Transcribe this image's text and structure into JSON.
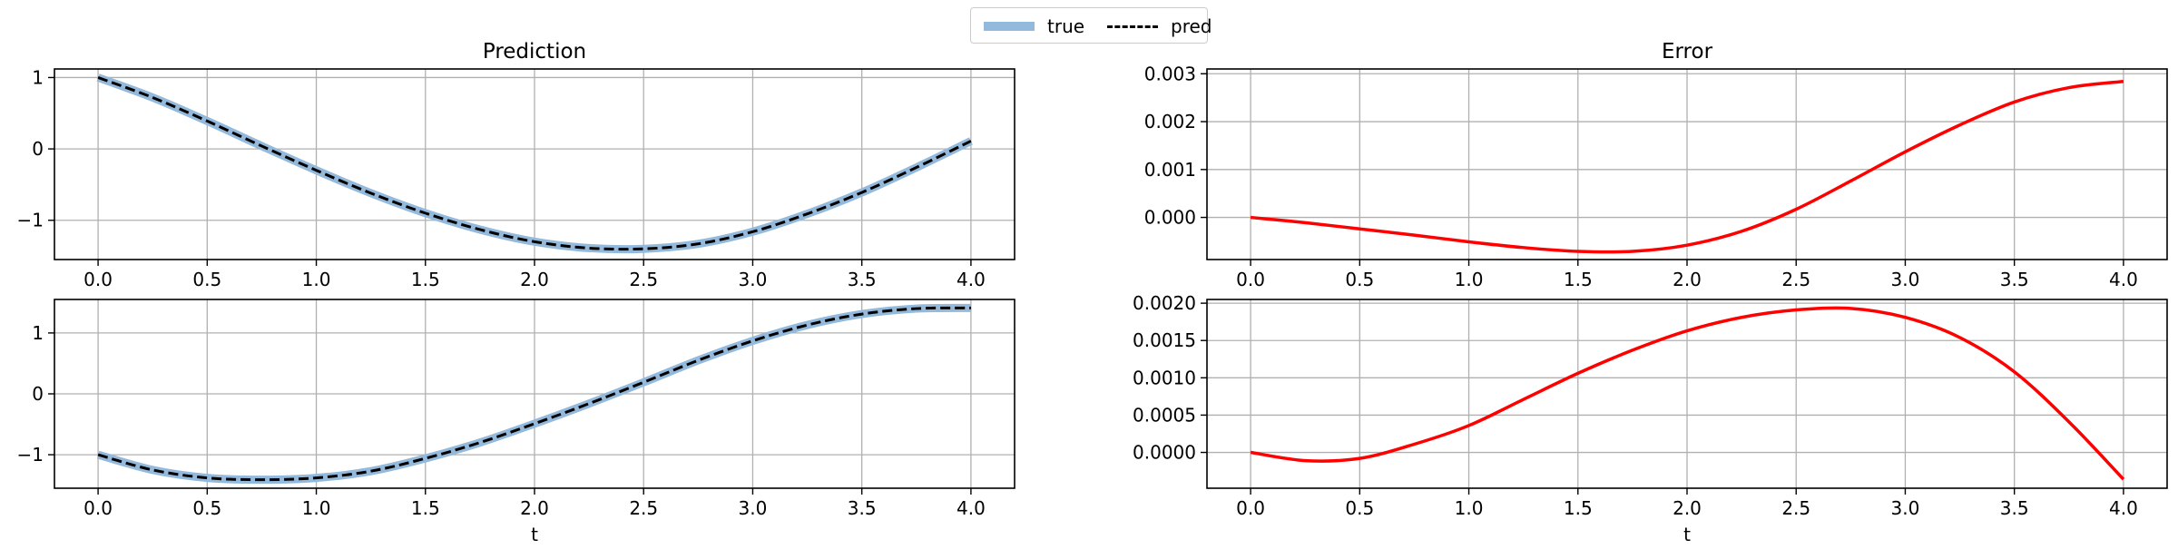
{
  "legend": {
    "true_label": "true",
    "pred_label": "pred"
  },
  "colors": {
    "true": "#93b9dc",
    "pred": "#000000",
    "error": "#ff0000",
    "grid": "#b0b0b0"
  },
  "chart_data": [
    {
      "type": "line",
      "title": "Prediction",
      "xlabel": "",
      "ylabel": "",
      "xlim": [
        -0.2,
        4.2
      ],
      "ylim": [
        -1.55,
        1.12
      ],
      "xticks": [
        0.0,
        0.5,
        1.0,
        1.5,
        2.0,
        2.5,
        3.0,
        3.5,
        4.0
      ],
      "xtick_labels": [
        "0.0",
        "0.5",
        "1.0",
        "1.5",
        "2.0",
        "2.5",
        "3.0",
        "3.5",
        "4.0"
      ],
      "yticks": [
        1,
        0,
        -1
      ],
      "ytick_labels": [
        "1",
        "0",
        "−1"
      ],
      "grid": true,
      "x": [
        0.0,
        0.25,
        0.5,
        0.75,
        1.0,
        1.25,
        1.5,
        1.75,
        2.0,
        2.25,
        2.5,
        2.75,
        3.0,
        3.25,
        3.5,
        3.75,
        4.0
      ],
      "series": [
        {
          "name": "true",
          "values": [
            1.0,
            0.72,
            0.39,
            0.04,
            -0.3,
            -0.62,
            -0.9,
            -1.13,
            -1.3,
            -1.39,
            -1.4,
            -1.33,
            -1.16,
            -0.91,
            -0.61,
            -0.26,
            0.11
          ]
        },
        {
          "name": "pred",
          "values": [
            1.0,
            0.72,
            0.39,
            0.04,
            -0.3,
            -0.62,
            -0.9,
            -1.13,
            -1.3,
            -1.39,
            -1.4,
            -1.33,
            -1.16,
            -0.91,
            -0.61,
            -0.26,
            0.11
          ]
        }
      ]
    },
    {
      "type": "line",
      "title": "Error",
      "xlabel": "",
      "ylabel": "",
      "xlim": [
        -0.2,
        4.2
      ],
      "ylim": [
        -0.00088,
        0.0031
      ],
      "xticks": [
        0.0,
        0.5,
        1.0,
        1.5,
        2.0,
        2.5,
        3.0,
        3.5,
        4.0
      ],
      "xtick_labels": [
        "0.0",
        "0.5",
        "1.0",
        "1.5",
        "2.0",
        "2.5",
        "3.0",
        "3.5",
        "4.0"
      ],
      "yticks": [
        0.003,
        0.002,
        0.001,
        0.0
      ],
      "ytick_labels": [
        "0.003",
        "0.002",
        "0.001",
        "0.000"
      ],
      "grid": true,
      "x": [
        0.0,
        0.25,
        0.5,
        0.75,
        1.0,
        1.25,
        1.5,
        1.75,
        2.0,
        2.25,
        2.5,
        2.75,
        3.0,
        3.25,
        3.5,
        3.75,
        4.0
      ],
      "series": [
        {
          "name": "",
          "values": [
            0.0,
            -0.00011,
            -0.00024,
            -0.00037,
            -0.00051,
            -0.00063,
            -0.00071,
            -0.00071,
            -0.00058,
            -0.00029,
            0.00017,
            0.00076,
            0.00137,
            0.00193,
            0.00241,
            0.00271,
            0.00284
          ]
        }
      ]
    },
    {
      "type": "line",
      "title": "",
      "xlabel": "t",
      "ylabel": "",
      "xlim": [
        -0.2,
        4.2
      ],
      "ylim": [
        -1.55,
        1.55
      ],
      "xticks": [
        0.0,
        0.5,
        1.0,
        1.5,
        2.0,
        2.5,
        3.0,
        3.5,
        4.0
      ],
      "xtick_labels": [
        "0.0",
        "0.5",
        "1.0",
        "1.5",
        "2.0",
        "2.5",
        "3.0",
        "3.5",
        "4.0"
      ],
      "yticks": [
        1,
        0,
        -1
      ],
      "ytick_labels": [
        "1",
        "0",
        "−1"
      ],
      "grid": true,
      "x": [
        0.0,
        0.25,
        0.5,
        0.75,
        1.0,
        1.25,
        1.5,
        1.75,
        2.0,
        2.25,
        2.5,
        2.75,
        3.0,
        3.25,
        3.5,
        3.75,
        4.0
      ],
      "series": [
        {
          "name": "true",
          "values": [
            -1.0,
            -1.25,
            -1.38,
            -1.41,
            -1.38,
            -1.27,
            -1.06,
            -0.8,
            -0.49,
            -0.16,
            0.19,
            0.55,
            0.87,
            1.13,
            1.31,
            1.4,
            1.41
          ]
        },
        {
          "name": "pred",
          "values": [
            -1.0,
            -1.25,
            -1.38,
            -1.41,
            -1.38,
            -1.27,
            -1.06,
            -0.8,
            -0.49,
            -0.16,
            0.19,
            0.55,
            0.87,
            1.13,
            1.31,
            1.4,
            1.41
          ]
        }
      ]
    },
    {
      "type": "line",
      "title": "",
      "xlabel": "t",
      "ylabel": "",
      "xlim": [
        -0.2,
        4.2
      ],
      "ylim": [
        -0.00048,
        0.00205
      ],
      "xticks": [
        0.0,
        0.5,
        1.0,
        1.5,
        2.0,
        2.5,
        3.0,
        3.5,
        4.0
      ],
      "xtick_labels": [
        "0.0",
        "0.5",
        "1.0",
        "1.5",
        "2.0",
        "2.5",
        "3.0",
        "3.5",
        "4.0"
      ],
      "yticks": [
        0.002,
        0.0015,
        0.001,
        0.0005,
        0.0
      ],
      "ytick_labels": [
        "0.0020",
        "0.0015",
        "0.0010",
        "0.0005",
        "0.0000"
      ],
      "grid": true,
      "x": [
        0.0,
        0.25,
        0.5,
        0.75,
        1.0,
        1.25,
        1.5,
        1.75,
        2.0,
        2.25,
        2.5,
        2.75,
        3.0,
        3.25,
        3.5,
        3.75,
        4.0
      ],
      "series": [
        {
          "name": "",
          "values": [
            0.0,
            -0.00011,
            -8e-05,
            0.00011,
            0.00036,
            0.00071,
            0.00106,
            0.00137,
            0.00163,
            0.00181,
            0.00191,
            0.00193,
            0.00181,
            0.00154,
            0.00108,
            0.00041,
            -0.00036
          ]
        }
      ]
    }
  ]
}
